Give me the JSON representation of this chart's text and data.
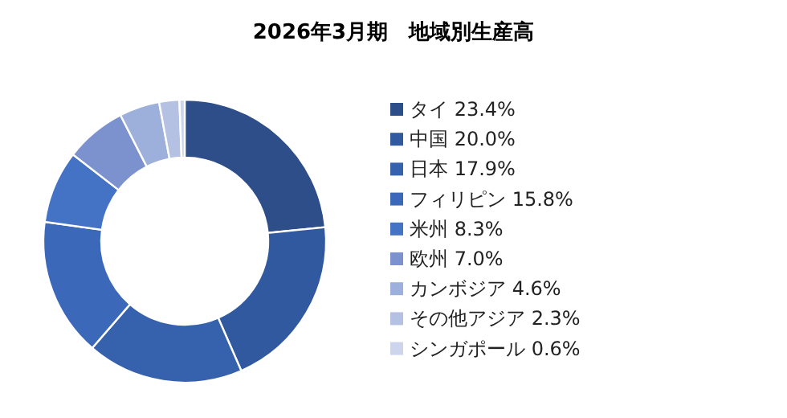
{
  "chart_data": {
    "type": "donut",
    "title": "2026年3月期　地域別生産高",
    "categories": [
      "タイ",
      "中国",
      "日本",
      "フィリピン",
      "米州",
      "欧州",
      "カンボジア",
      "その他アジア",
      "シンガポール"
    ],
    "values": [
      23.4,
      20.0,
      17.9,
      15.8,
      8.3,
      7.0,
      4.6,
      2.3,
      0.6
    ],
    "value_labels": [
      "23.4%",
      "20.0%",
      "17.9%",
      "15.8%",
      "8.3%",
      "7.0%",
      "4.6%",
      "2.3%",
      "0.6%"
    ],
    "colors": [
      "#2e4e8a",
      "#30599f",
      "#3661ad",
      "#3b68b8",
      "#4472c4",
      "#7b92cf",
      "#9dafdb",
      "#b5c1e3",
      "#cdd5ec"
    ],
    "legend": "right"
  }
}
